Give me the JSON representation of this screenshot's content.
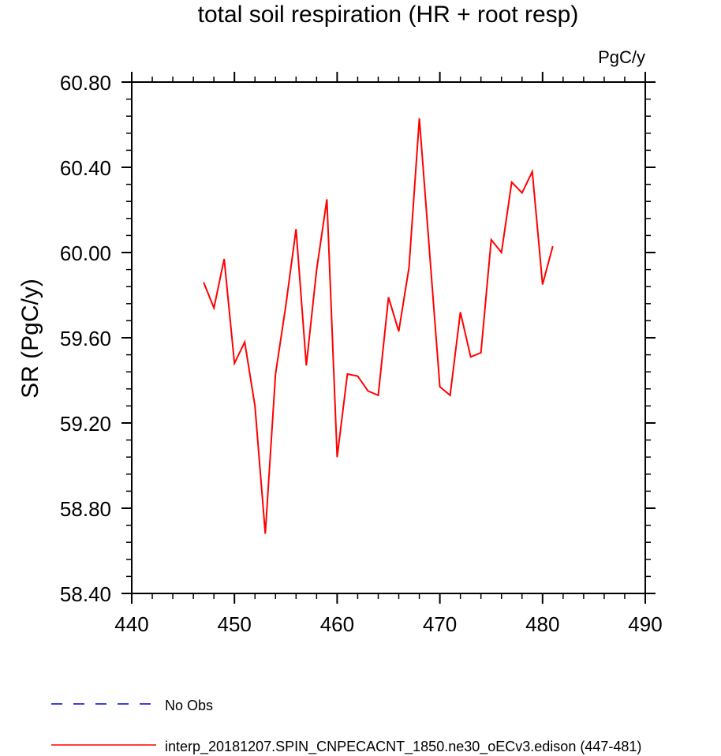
{
  "chart_data": {
    "type": "line",
    "title": "total soil respiration (HR + root resp)",
    "units_label": "PgC/y",
    "ylabel": "SR  (PgC/y)",
    "xlabel": "",
    "xlim": [
      440,
      490
    ],
    "ylim": [
      58.4,
      60.8
    ],
    "x_ticks": [
      440,
      450,
      460,
      470,
      480,
      490
    ],
    "x_tick_labels": [
      "440",
      "450",
      "460",
      "470",
      "480",
      "490"
    ],
    "y_ticks": [
      58.4,
      58.8,
      59.2,
      59.6,
      60.0,
      60.4,
      60.8
    ],
    "y_tick_labels": [
      "58.40",
      "58.80",
      "59.20",
      "59.60",
      "60.00",
      "60.40",
      "60.80"
    ],
    "grid": false,
    "legend_position": "bottom-left",
    "series": [
      {
        "name": "interp_20181207.SPIN_CNPECACNT_1850.ne30_oECv3.edison (447-481)",
        "color": "#ff0000",
        "style": "solid",
        "x": [
          447,
          448,
          449,
          450,
          451,
          452,
          453,
          454,
          455,
          456,
          457,
          458,
          459,
          460,
          461,
          462,
          463,
          464,
          465,
          466,
          467,
          468,
          469,
          470,
          471,
          472,
          473,
          474,
          475,
          476,
          477,
          478,
          479,
          480,
          481
        ],
        "y": [
          59.86,
          59.74,
          59.97,
          59.48,
          59.58,
          59.28,
          58.68,
          59.43,
          59.75,
          60.11,
          59.47,
          59.92,
          60.25,
          59.04,
          59.43,
          59.42,
          59.35,
          59.33,
          59.79,
          59.63,
          59.93,
          60.63,
          60.0,
          59.37,
          59.33,
          59.72,
          59.51,
          59.53,
          60.06,
          60.0,
          60.33,
          60.28,
          60.38,
          59.85,
          60.03
        ]
      }
    ],
    "legend": [
      {
        "label": "No Obs",
        "color": "#0000cc",
        "style": "dashed"
      },
      {
        "label": "interp_20181207.SPIN_CNPECACNT_1850.ne30_oECv3.edison (447-481)",
        "color": "#ff0000",
        "style": "solid"
      }
    ]
  }
}
